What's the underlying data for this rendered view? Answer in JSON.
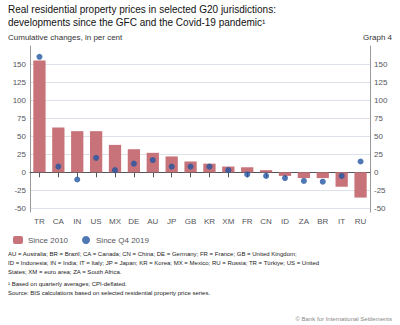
{
  "chart_data": {
    "type": "bar",
    "title": "Real residential property prices in selected G20 jurisdictions:",
    "subtitle": "developments since the GFC and the Covid-19 pandemic¹",
    "ylabel": "Cumulative changes, in per cent",
    "categories": [
      "TR",
      "CA",
      "IN",
      "US",
      "MX",
      "DE",
      "AU",
      "JP",
      "GB",
      "KR",
      "XM",
      "FR",
      "CN",
      "ID",
      "ZA",
      "BR",
      "IT",
      "RU"
    ],
    "series": [
      {
        "name": "Since 2010",
        "type": "bar",
        "color": "#c8737a",
        "values": [
          155,
          62,
          57,
          57,
          38,
          32,
          27,
          22,
          15,
          12,
          8,
          7,
          3,
          -5,
          -8,
          -8,
          -20,
          -35
        ]
      },
      {
        "name": "Since Q4 2019",
        "type": "scatter",
        "color": "#2255a0",
        "values": [
          160,
          8,
          -10,
          20,
          3,
          12,
          17,
          8,
          8,
          8,
          3,
          -3,
          -5,
          -8,
          -12,
          -13,
          -5,
          15
        ]
      }
    ],
    "ylim": [
      -55,
      175
    ],
    "yticks": [
      -50,
      -25,
      0,
      25,
      50,
      75,
      100,
      125,
      150
    ],
    "y2lim": [
      -55,
      175
    ],
    "y2ticks": [
      -50,
      -25,
      0,
      25,
      50,
      75,
      100,
      125,
      150
    ],
    "grid": true,
    "legend": "bottom",
    "annotations": [
      "Graph 4",
      "AU = Australia; BR = Brazil; CA = Canada; CN = China; DE = Germany; FR = France; GB = United Kingdom;",
      "ID = Indonesia; IN = India; IT = Italy; JP = Japan; KR = Korea; MX = Mexico; RU = Russia; TR = Türkiye; US = United",
      "States; XM = euro area; ZA = South Africa.",
      "¹ Based on quarterly averages; CPI-deflated.",
      "Source: BIS calculations based on selected residential property price series.",
      "© Bank for International Settlements"
    ]
  }
}
